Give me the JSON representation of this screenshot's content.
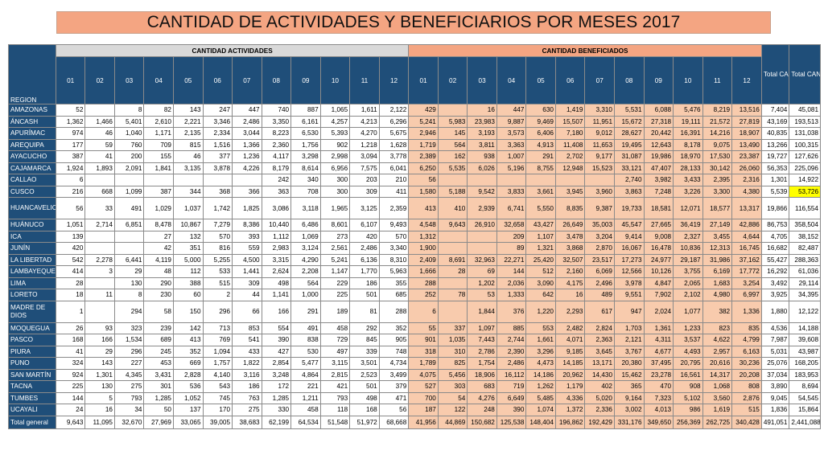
{
  "title": "CANTIDAD DE ACTIVIDADES Y BENEFICIARIOS POR MESES 2017",
  "headers": {
    "region": "REGION",
    "activities_group": "CANTIDAD ACTIVIDADES",
    "beneficiaries_group": "CANTIDAD BENEFICIADOS",
    "total_activities": "Total CANTIDAD ACTIVIDADES",
    "total_beneficiaries": "Total CANTIDAD BENEFICIADOS",
    "months": [
      "01",
      "02",
      "03",
      "04",
      "05",
      "06",
      "07",
      "08",
      "09",
      "10",
      "11",
      "12"
    ]
  },
  "rows": [
    {
      "region": "AMAZONAS",
      "act": [
        "52",
        "",
        "8",
        "82",
        "143",
        "247",
        "447",
        "740",
        "887",
        "1,065",
        "1,611",
        "2,122"
      ],
      "ben": [
        "429",
        "",
        "16",
        "447",
        "630",
        "1,419",
        "3,310",
        "5,531",
        "6,088",
        "5,476",
        "8,219",
        "13,516"
      ],
      "tot_act": "7,404",
      "tot_ben": "45,081"
    },
    {
      "region": "ÁNCASH",
      "act": [
        "1,362",
        "1,466",
        "5,401",
        "2,610",
        "2,221",
        "3,346",
        "2,486",
        "3,350",
        "6,161",
        "4,257",
        "4,213",
        "6,296"
      ],
      "ben": [
        "5,241",
        "5,983",
        "23,983",
        "9,887",
        "9,469",
        "15,507",
        "11,951",
        "15,672",
        "27,318",
        "19,111",
        "21,572",
        "27,819"
      ],
      "tot_act": "43,169",
      "tot_ben": "193,513"
    },
    {
      "region": "APURÍMAC",
      "act": [
        "974",
        "46",
        "1,040",
        "1,171",
        "2,135",
        "2,334",
        "3,044",
        "8,223",
        "6,530",
        "5,393",
        "4,270",
        "5,675"
      ],
      "ben": [
        "2,946",
        "145",
        "3,193",
        "3,573",
        "6,406",
        "7,180",
        "9,012",
        "28,627",
        "20,442",
        "16,391",
        "14,216",
        "18,907"
      ],
      "tot_act": "40,835",
      "tot_ben": "131,038"
    },
    {
      "region": "AREQUIPA",
      "act": [
        "177",
        "59",
        "760",
        "709",
        "815",
        "1,516",
        "1,366",
        "2,360",
        "1,756",
        "902",
        "1,218",
        "1,628"
      ],
      "ben": [
        "1,719",
        "564",
        "3,811",
        "3,363",
        "4,913",
        "11,408",
        "11,653",
        "19,495",
        "12,643",
        "8,178",
        "9,075",
        "13,490"
      ],
      "tot_act": "13,266",
      "tot_ben": "100,315"
    },
    {
      "region": "AYACUCHO",
      "act": [
        "387",
        "41",
        "200",
        "155",
        "46",
        "377",
        "1,236",
        "4,117",
        "3,298",
        "2,998",
        "3,094",
        "3,778"
      ],
      "ben": [
        "2,389",
        "162",
        "938",
        "1,007",
        "291",
        "2,702",
        "9,177",
        "31,087",
        "19,986",
        "18,970",
        "17,530",
        "23,387"
      ],
      "tot_act": "19,727",
      "tot_ben": "127,626"
    },
    {
      "region": "CAJAMARCA",
      "act": [
        "1,924",
        "1,893",
        "2,091",
        "1,841",
        "3,135",
        "3,878",
        "4,226",
        "8,179",
        "8,614",
        "6,956",
        "7,575",
        "6,041"
      ],
      "ben": [
        "6,250",
        "5,535",
        "6,026",
        "5,196",
        "8,755",
        "12,948",
        "15,523",
        "33,121",
        "47,407",
        "28,133",
        "30,142",
        "26,060"
      ],
      "tot_act": "56,353",
      "tot_ben": "225,096"
    },
    {
      "region": "CALLAO",
      "act": [
        "6",
        "",
        "",
        "",
        "",
        "",
        "",
        "242",
        "340",
        "300",
        "203",
        "210"
      ],
      "ben": [
        "56",
        "",
        "",
        "",
        "",
        "",
        "",
        "2,740",
        "3,982",
        "3,433",
        "2,395",
        "2,316"
      ],
      "tot_act": "1,301",
      "tot_ben": "14,922"
    },
    {
      "region": "CUSCO",
      "act": [
        "216",
        "668",
        "1,099",
        "387",
        "344",
        "368",
        "366",
        "363",
        "708",
        "300",
        "309",
        "411"
      ],
      "ben": [
        "1,580",
        "5,188",
        "9,542",
        "3,833",
        "3,661",
        "3,945",
        "3,960",
        "3,863",
        "7,248",
        "3,226",
        "3,300",
        "4,380"
      ],
      "tot_act": "5,539",
      "tot_ben": "53,726",
      "highlight_tot_ben": true
    },
    {
      "region": "HUANCAVELICA",
      "act": [
        "56",
        "33",
        "491",
        "1,029",
        "1,037",
        "1,742",
        "1,825",
        "3,086",
        "3,118",
        "1,965",
        "3,125",
        "2,359"
      ],
      "ben": [
        "413",
        "410",
        "2,939",
        "6,741",
        "5,550",
        "8,835",
        "9,387",
        "19,733",
        "18,581",
        "12,071",
        "18,577",
        "13,317"
      ],
      "tot_act": "19,866",
      "tot_ben": "116,554",
      "tall": true
    },
    {
      "region": "HUÁNUCO",
      "act": [
        "1,051",
        "2,714",
        "6,851",
        "8,478",
        "10,867",
        "7,279",
        "8,386",
        "10,440",
        "6,486",
        "8,601",
        "6,107",
        "9,493"
      ],
      "ben": [
        "4,548",
        "9,643",
        "26,910",
        "32,658",
        "43,427",
        "26,649",
        "35,003",
        "45,547",
        "27,665",
        "36,419",
        "27,149",
        "42,886"
      ],
      "tot_act": "86,753",
      "tot_ben": "358,504"
    },
    {
      "region": "ICA",
      "act": [
        "139",
        "",
        "",
        "27",
        "132",
        "570",
        "393",
        "1,112",
        "1,069",
        "273",
        "420",
        "570"
      ],
      "ben": [
        "1,312",
        "",
        "",
        "209",
        "1,107",
        "3,478",
        "3,204",
        "9,414",
        "9,008",
        "2,327",
        "3,455",
        "4,644"
      ],
      "tot_act": "4,705",
      "tot_ben": "38,152"
    },
    {
      "region": "JUNÍN",
      "act": [
        "420",
        "",
        "",
        "42",
        "351",
        "816",
        "559",
        "2,983",
        "3,124",
        "2,561",
        "2,486",
        "3,340"
      ],
      "ben": [
        "1,900",
        "",
        "",
        "89",
        "1,321",
        "3,868",
        "2,870",
        "16,067",
        "16,478",
        "10,836",
        "12,313",
        "16,745"
      ],
      "tot_act": "16,682",
      "tot_ben": "82,487"
    },
    {
      "region": "LA LIBERTAD",
      "act": [
        "542",
        "2,278",
        "6,441",
        "4,119",
        "5,000",
        "5,255",
        "4,500",
        "3,315",
        "4,290",
        "5,241",
        "6,136",
        "8,310"
      ],
      "ben": [
        "2,409",
        "8,691",
        "32,963",
        "22,271",
        "25,420",
        "32,507",
        "23,517",
        "17,273",
        "24,977",
        "29,187",
        "31,986",
        "37,162"
      ],
      "tot_act": "55,427",
      "tot_ben": "288,363"
    },
    {
      "region": "LAMBAYEQUE",
      "act": [
        "414",
        "3",
        "29",
        "48",
        "112",
        "533",
        "1,441",
        "2,624",
        "2,208",
        "1,147",
        "1,770",
        "5,963"
      ],
      "ben": [
        "1,666",
        "28",
        "69",
        "144",
        "512",
        "2,160",
        "6,069",
        "12,566",
        "10,126",
        "3,755",
        "6,169",
        "17,772"
      ],
      "tot_act": "16,292",
      "tot_ben": "61,036"
    },
    {
      "region": "LIMA",
      "act": [
        "28",
        "",
        "130",
        "290",
        "388",
        "515",
        "309",
        "498",
        "564",
        "229",
        "186",
        "355"
      ],
      "ben": [
        "288",
        "",
        "1,202",
        "2,036",
        "3,090",
        "4,175",
        "2,496",
        "3,978",
        "4,847",
        "2,065",
        "1,683",
        "3,254"
      ],
      "tot_act": "3,492",
      "tot_ben": "29,114"
    },
    {
      "region": "LORETO",
      "act": [
        "18",
        "11",
        "8",
        "230",
        "60",
        "2",
        "44",
        "1,141",
        "1,000",
        "225",
        "501",
        "685"
      ],
      "ben": [
        "252",
        "78",
        "53",
        "1,333",
        "642",
        "16",
        "489",
        "9,551",
        "7,902",
        "2,102",
        "4,980",
        "6,997"
      ],
      "tot_act": "3,925",
      "tot_ben": "34,395"
    },
    {
      "region": "MADRE DE DIOS",
      "act": [
        "1",
        "",
        "294",
        "58",
        "150",
        "296",
        "66",
        "166",
        "291",
        "189",
        "81",
        "288"
      ],
      "ben": [
        "6",
        "",
        "1,844",
        "376",
        "1,220",
        "2,293",
        "617",
        "947",
        "2,024",
        "1,077",
        "382",
        "1,336"
      ],
      "tot_act": "1,880",
      "tot_ben": "12,122",
      "tall": true
    },
    {
      "region": "MOQUEGUA",
      "act": [
        "26",
        "93",
        "323",
        "239",
        "142",
        "713",
        "853",
        "554",
        "491",
        "458",
        "292",
        "352"
      ],
      "ben": [
        "55",
        "337",
        "1,097",
        "885",
        "553",
        "2,482",
        "2,824",
        "1,703",
        "1,361",
        "1,233",
        "823",
        "835"
      ],
      "tot_act": "4,536",
      "tot_ben": "14,188"
    },
    {
      "region": "PASCO",
      "act": [
        "168",
        "166",
        "1,534",
        "689",
        "413",
        "769",
        "541",
        "390",
        "838",
        "729",
        "845",
        "905"
      ],
      "ben": [
        "901",
        "1,035",
        "7,443",
        "2,744",
        "1,661",
        "4,071",
        "2,363",
        "2,121",
        "4,311",
        "3,537",
        "4,622",
        "4,799"
      ],
      "tot_act": "7,987",
      "tot_ben": "39,608"
    },
    {
      "region": "PIURA",
      "act": [
        "41",
        "29",
        "296",
        "245",
        "352",
        "1,094",
        "433",
        "427",
        "530",
        "497",
        "339",
        "748"
      ],
      "ben": [
        "318",
        "310",
        "2,786",
        "2,390",
        "3,296",
        "9,185",
        "3,645",
        "3,767",
        "4,677",
        "4,493",
        "2,957",
        "6,163"
      ],
      "tot_act": "5,031",
      "tot_ben": "43,987"
    },
    {
      "region": "PUNO",
      "act": [
        "324",
        "143",
        "227",
        "453",
        "669",
        "1,757",
        "1,822",
        "2,854",
        "5,477",
        "3,115",
        "3,501",
        "4,734"
      ],
      "ben": [
        "1,789",
        "825",
        "1,754",
        "2,486",
        "4,473",
        "14,185",
        "13,171",
        "20,380",
        "37,495",
        "20,795",
        "20,616",
        "30,236"
      ],
      "tot_act": "25,076",
      "tot_ben": "168,205"
    },
    {
      "region": "SAN MARTÍN",
      "act": [
        "924",
        "1,301",
        "4,345",
        "3,431",
        "2,828",
        "4,140",
        "3,116",
        "3,248",
        "4,864",
        "2,815",
        "2,523",
        "3,499"
      ],
      "ben": [
        "4,075",
        "5,456",
        "18,906",
        "16,112",
        "14,186",
        "20,962",
        "14,430",
        "15,462",
        "23,278",
        "16,561",
        "14,317",
        "20,208"
      ],
      "tot_act": "37,034",
      "tot_ben": "183,953"
    },
    {
      "region": "TACNA",
      "act": [
        "225",
        "130",
        "275",
        "301",
        "536",
        "543",
        "186",
        "172",
        "221",
        "421",
        "501",
        "379"
      ],
      "ben": [
        "527",
        "303",
        "683",
        "719",
        "1,262",
        "1,179",
        "402",
        "365",
        "470",
        "908",
        "1,068",
        "808"
      ],
      "tot_act": "3,890",
      "tot_ben": "8,694"
    },
    {
      "region": "TUMBES",
      "act": [
        "144",
        "5",
        "793",
        "1,285",
        "1,052",
        "745",
        "763",
        "1,285",
        "1,211",
        "793",
        "498",
        "471"
      ],
      "ben": [
        "700",
        "54",
        "4,276",
        "6,649",
        "5,485",
        "4,336",
        "5,020",
        "9,164",
        "7,323",
        "5,102",
        "3,560",
        "2,876"
      ],
      "tot_act": "9,045",
      "tot_ben": "54,545"
    },
    {
      "region": "UCAYALI",
      "act": [
        "24",
        "16",
        "34",
        "50",
        "137",
        "170",
        "275",
        "330",
        "458",
        "118",
        "168",
        "56"
      ],
      "ben": [
        "187",
        "122",
        "248",
        "390",
        "1,074",
        "1,372",
        "2,336",
        "3,002",
        "4,013",
        "986",
        "1,619",
        "515"
      ],
      "tot_act": "1,836",
      "tot_ben": "15,864"
    }
  ],
  "total_row": {
    "label": "Total general",
    "act": [
      "9,643",
      "11,095",
      "32,670",
      "27,969",
      "33,065",
      "39,005",
      "38,683",
      "62,199",
      "64,534",
      "51,548",
      "51,972",
      "68,668"
    ],
    "ben": [
      "41,956",
      "44,869",
      "150,682",
      "125,538",
      "148,404",
      "196,862",
      "192,429",
      "331,176",
      "349,650",
      "256,369",
      "262,725",
      "340,428"
    ],
    "tot_act": "491,051",
    "tot_ben": "2,441,088"
  },
  "colors": {
    "title_bg": "#f4a582",
    "header_blue": "#1f4e79",
    "beneficiaries_bg": "#f8cbad",
    "activities_group_bg": "#d9d9d9",
    "highlight": "#ffff00"
  }
}
